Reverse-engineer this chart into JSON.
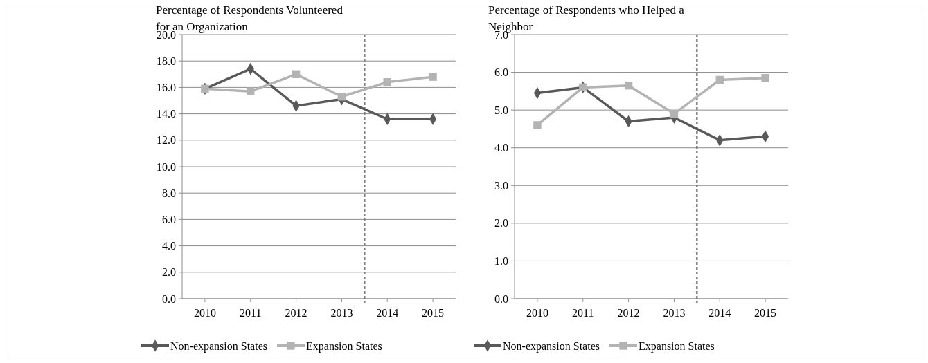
{
  "chart_data": [
    {
      "type": "line",
      "title": "Percentage of Respondents Volunteered for an Organization",
      "x": [
        2010,
        2011,
        2012,
        2013,
        2014,
        2015
      ],
      "xlim": [
        2009.5,
        2015.5
      ],
      "xticks": [
        2010,
        2011,
        2012,
        2013,
        2014,
        2015
      ],
      "ylim": [
        0,
        20
      ],
      "yticks": [
        {
          "value": 0,
          "label": "0.0"
        },
        {
          "value": 2,
          "label": "2.0"
        },
        {
          "value": 4,
          "label": "4.0"
        },
        {
          "value": 6,
          "label": "6.0"
        },
        {
          "value": 8,
          "label": "8.0"
        },
        {
          "value": 10,
          "label": "10.0"
        },
        {
          "value": 12,
          "label": "12.0"
        },
        {
          "value": 14,
          "label": "14.0"
        },
        {
          "value": 16,
          "label": "16.0"
        },
        {
          "value": 18,
          "label": "18.0"
        },
        {
          "value": 20,
          "label": "20.0"
        }
      ],
      "grid": "y",
      "legend": "bottom",
      "ref_lines": [
        {
          "axis": "x",
          "value": 2013.5,
          "color": "#7f7f7f",
          "line_style": "dashed"
        }
      ],
      "series": [
        {
          "name": "Non-expansion States",
          "color": "#595959",
          "marker": "diamond",
          "values": [
            15.9,
            17.4,
            14.6,
            15.1,
            13.6,
            13.6
          ]
        },
        {
          "name": "Expansion States",
          "color": "#b3b3b3",
          "marker": "square",
          "values": [
            15.9,
            15.7,
            17.0,
            15.3,
            16.4,
            16.8
          ]
        }
      ]
    },
    {
      "type": "line",
      "title": "Percentage of Respondents who Helped a Neighbor",
      "x": [
        2010,
        2011,
        2012,
        2013,
        2014,
        2015
      ],
      "xlim": [
        2009.5,
        2015.5
      ],
      "xticks": [
        2010,
        2011,
        2012,
        2013,
        2014,
        2015
      ],
      "ylim": [
        0,
        7
      ],
      "yticks": [
        {
          "value": 0,
          "label": "0.0"
        },
        {
          "value": 1,
          "label": "1.0"
        },
        {
          "value": 2,
          "label": "2.0"
        },
        {
          "value": 3,
          "label": "3.0"
        },
        {
          "value": 4,
          "label": "4.0"
        },
        {
          "value": 5,
          "label": "5.0"
        },
        {
          "value": 6,
          "label": "6.0"
        },
        {
          "value": 7,
          "label": "7.0"
        }
      ],
      "grid": "y",
      "legend": "bottom",
      "ref_lines": [
        {
          "axis": "x",
          "value": 2013.5,
          "color": "#7f7f7f",
          "line_style": "dashed"
        }
      ],
      "series": [
        {
          "name": "Non-expansion States",
          "color": "#595959",
          "marker": "diamond",
          "values": [
            5.45,
            5.6,
            4.7,
            4.8,
            4.2,
            4.3
          ]
        },
        {
          "name": "Expansion States",
          "color": "#b3b3b3",
          "marker": "square",
          "values": [
            4.6,
            5.6,
            5.65,
            4.9,
            5.8,
            5.85
          ]
        }
      ]
    }
  ]
}
